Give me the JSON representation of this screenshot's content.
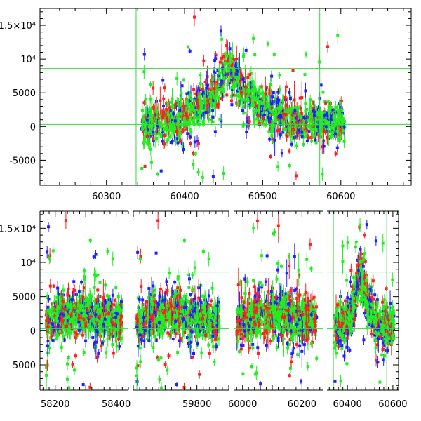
{
  "chart_data": [
    {
      "type": "scatter",
      "panel": "top",
      "title": "",
      "xlabel": "",
      "ylabel": "",
      "xlim": [
        60215,
        60690
      ],
      "ylim": [
        -8700,
        17500
      ],
      "x_tick_labels": [
        "60300",
        "60400",
        "60500",
        "60600"
      ],
      "x_ticks": [
        60300,
        60400,
        60500,
        60600
      ],
      "y_ticks": [
        {
          "value": 15000,
          "label": "1.5×10⁴"
        },
        {
          "value": 10000,
          "label": "10⁴"
        },
        {
          "value": 5000,
          "label": "5000"
        },
        {
          "value": 0,
          "label": "0"
        },
        {
          "value": -5000,
          "label": "-5000"
        }
      ],
      "reference_lines": {
        "vertical": [
          60338,
          60573
        ],
        "horizontal": [
          8600,
          300
        ]
      },
      "series": [
        {
          "color": "#ff2020",
          "x_range": [
            60345,
            60605
          ]
        },
        {
          "color": "#2020ff",
          "x_range": [
            60345,
            60605
          ]
        },
        {
          "color": "#22ee22",
          "x_range": [
            60345,
            60605
          ]
        }
      ],
      "envelope": {
        "x_start": 60345,
        "x_end": 60605,
        "x_peak": 60455,
        "peak_value": 9000,
        "base_value": 300
      },
      "grid": false
    },
    {
      "type": "scatter",
      "panel": "bottom",
      "title": "",
      "xlabel": "",
      "ylabel": "",
      "ylim": [
        -8700,
        17500
      ],
      "y_ticks": [
        {
          "value": 15000,
          "label": "1.5×10⁴"
        },
        {
          "value": 10000,
          "label": "10⁴"
        },
        {
          "value": 5000,
          "label": "5000"
        },
        {
          "value": 0,
          "label": "0"
        },
        {
          "value": -5000,
          "label": "-5000"
        }
      ],
      "x_tick_labels": [
        "58200",
        "58400",
        "59800",
        "60000",
        "60200",
        "60400",
        "60600"
      ],
      "segments": [
        {
          "xlim": [
            58150,
            58440
          ],
          "data_x_range": [
            58170,
            58420
          ],
          "x_ticks": [
            58200,
            58300,
            58400
          ]
        },
        {
          "xlim": [
            59600,
            59900
          ],
          "data_x_range": [
            59610,
            59870
          ],
          "x_ticks": [
            59800
          ]
        },
        {
          "xlim": [
            59970,
            60270
          ],
          "data_x_range": [
            59980,
            60250
          ],
          "x_ticks": [
            60000,
            60100,
            60200
          ]
        },
        {
          "xlim": [
            60310,
            60625
          ],
          "data_x_range": [
            60345,
            60605
          ],
          "x_ticks": [
            60400,
            60500,
            60600
          ]
        }
      ],
      "reference_lines": {
        "vertical": [
          60338,
          60573
        ],
        "horizontal": [
          8600,
          300
        ]
      },
      "series": [
        {
          "color": "#ff2020"
        },
        {
          "color": "#2020ff"
        },
        {
          "color": "#22ee22"
        }
      ],
      "grid": false
    }
  ]
}
